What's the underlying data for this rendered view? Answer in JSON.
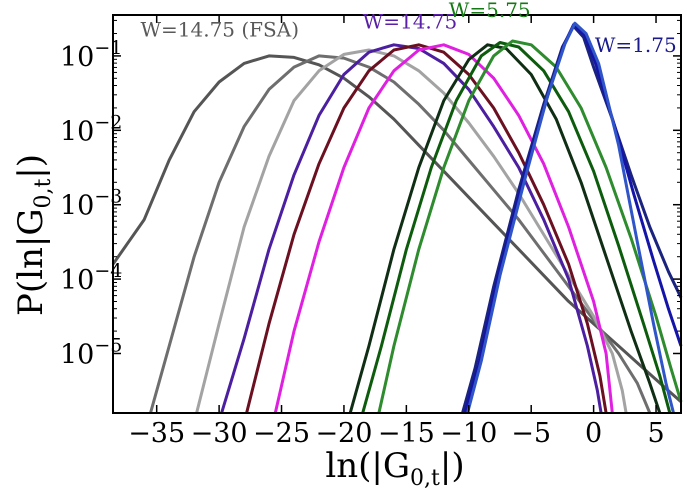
{
  "chart_data": {
    "type": "line",
    "xlabel": "ln(|G",
    "xlabel_sub": "0,t",
    "xlabel_end": "|)",
    "ylabel": "P(ln|G",
    "ylabel_sub": "0,t",
    "ylabel_end": "|)",
    "y_scale": "log",
    "xlim": [
      -38.5,
      7
    ],
    "ylim_exp": [
      -5.8,
      -0.45
    ],
    "x_ticks": [
      -35,
      -30,
      -25,
      -20,
      -15,
      -10,
      -5,
      0,
      5
    ],
    "x_tick_labels": [
      "−35",
      "−30",
      "−25",
      "−20",
      "−15",
      "−10",
      "−5",
      "0",
      "5"
    ],
    "y_tick_exps": [
      -1,
      -2,
      -3,
      -4,
      -5
    ],
    "y_tick_base": "10",
    "y_tick_exp_labels": [
      "−1",
      "−2",
      "−3",
      "−4",
      "−5"
    ],
    "annotations": [
      {
        "text": "W=14.75 (FSA)",
        "color": "#595959",
        "x": -36.3,
        "yexp": -0.74
      },
      {
        "text": "W=14.75",
        "color": "#5a1fa6",
        "x": -18.5,
        "yexp": -0.63
      },
      {
        "text": "W=5.75",
        "color": "#137a13",
        "x": -11.6,
        "yexp": -0.48
      },
      {
        "text": "W=1.75",
        "color": "#1a1a8c",
        "x": 0.1,
        "yexp": -0.95
      }
    ],
    "series": [
      {
        "color": "#555555",
        "points": [
          [
            -38.5,
            -3.8
          ],
          [
            -36,
            -3.2
          ],
          [
            -34,
            -2.4
          ],
          [
            -32,
            -1.75
          ],
          [
            -30,
            -1.35
          ],
          [
            -28,
            -1.1
          ],
          [
            -26,
            -1.0
          ],
          [
            -24,
            -1.02
          ],
          [
            -22,
            -1.12
          ],
          [
            -20,
            -1.3
          ],
          [
            -18,
            -1.55
          ],
          [
            -16,
            -1.85
          ],
          [
            -14,
            -2.2
          ],
          [
            -12,
            -2.55
          ],
          [
            -10,
            -2.9
          ],
          [
            -8,
            -3.25
          ],
          [
            -6,
            -3.6
          ],
          [
            -4,
            -3.95
          ],
          [
            -2,
            -4.3
          ],
          [
            0,
            -4.6
          ],
          [
            2,
            -4.9
          ],
          [
            4,
            -5.2
          ],
          [
            6,
            -5.5
          ],
          [
            7,
            -5.65
          ]
        ]
      },
      {
        "color": "#6e6e6e",
        "points": [
          [
            -35.5,
            -5.8
          ],
          [
            -34,
            -4.9
          ],
          [
            -32,
            -3.7
          ],
          [
            -30,
            -2.7
          ],
          [
            -28,
            -1.95
          ],
          [
            -26,
            -1.45
          ],
          [
            -24,
            -1.15
          ],
          [
            -22,
            -1.0
          ],
          [
            -20,
            -1.03
          ],
          [
            -18,
            -1.15
          ],
          [
            -16,
            -1.35
          ],
          [
            -14,
            -1.65
          ],
          [
            -12,
            -2.0
          ],
          [
            -10,
            -2.4
          ],
          [
            -8,
            -2.8
          ],
          [
            -6,
            -3.2
          ],
          [
            -4,
            -3.65
          ],
          [
            -2,
            -4.1
          ],
          [
            0,
            -4.55
          ],
          [
            2,
            -5.0
          ],
          [
            3.5,
            -5.4
          ],
          [
            4.5,
            -5.8
          ]
        ]
      },
      {
        "color": "#a3a3a3",
        "points": [
          [
            -31.8,
            -5.8
          ],
          [
            -30,
            -4.6
          ],
          [
            -28,
            -3.3
          ],
          [
            -26,
            -2.35
          ],
          [
            -24,
            -1.6
          ],
          [
            -22,
            -1.2
          ],
          [
            -20,
            -0.98
          ],
          [
            -18,
            -0.92
          ],
          [
            -16,
            -1.0
          ],
          [
            -14,
            -1.2
          ],
          [
            -12,
            -1.5
          ],
          [
            -10,
            -1.9
          ],
          [
            -8,
            -2.35
          ],
          [
            -6,
            -2.85
          ],
          [
            -4,
            -3.4
          ],
          [
            -2,
            -3.95
          ],
          [
            0,
            -4.5
          ],
          [
            1.5,
            -5.0
          ],
          [
            2.3,
            -5.5
          ],
          [
            2.6,
            -5.8
          ]
        ]
      },
      {
        "color": "#4b1fa0",
        "points": [
          [
            -29.8,
            -5.8
          ],
          [
            -28,
            -4.8
          ],
          [
            -26,
            -3.6
          ],
          [
            -24,
            -2.6
          ],
          [
            -22,
            -1.8
          ],
          [
            -20,
            -1.25
          ],
          [
            -18,
            -0.95
          ],
          [
            -16,
            -0.85
          ],
          [
            -14,
            -0.9
          ],
          [
            -12,
            -1.1
          ],
          [
            -10,
            -1.45
          ],
          [
            -8,
            -1.95
          ],
          [
            -6,
            -2.5
          ],
          [
            -4,
            -3.2
          ],
          [
            -2,
            -4.0
          ],
          [
            -0.5,
            -4.9
          ],
          [
            0.3,
            -5.5
          ],
          [
            0.6,
            -5.8
          ]
        ]
      },
      {
        "color": "#6b1020",
        "points": [
          [
            -27.8,
            -5.8
          ],
          [
            -26,
            -4.6
          ],
          [
            -24,
            -3.4
          ],
          [
            -22,
            -2.45
          ],
          [
            -20,
            -1.7
          ],
          [
            -18,
            -1.2
          ],
          [
            -16,
            -0.92
          ],
          [
            -14,
            -0.85
          ],
          [
            -12,
            -0.95
          ],
          [
            -10,
            -1.25
          ],
          [
            -8,
            -1.7
          ],
          [
            -6,
            -2.3
          ],
          [
            -4,
            -3.0
          ],
          [
            -2,
            -3.8
          ],
          [
            -0.5,
            -4.6
          ],
          [
            0.5,
            -5.3
          ],
          [
            1,
            -5.8
          ]
        ]
      },
      {
        "color": "#e020e0",
        "points": [
          [
            -25.5,
            -5.8
          ],
          [
            -24,
            -4.7
          ],
          [
            -22,
            -3.5
          ],
          [
            -20,
            -2.5
          ],
          [
            -18,
            -1.7
          ],
          [
            -16,
            -1.2
          ],
          [
            -14,
            -0.92
          ],
          [
            -12,
            -0.85
          ],
          [
            -10,
            -0.98
          ],
          [
            -8,
            -1.3
          ],
          [
            -6,
            -1.8
          ],
          [
            -4,
            -2.45
          ],
          [
            -2,
            -3.3
          ],
          [
            0,
            -4.3
          ],
          [
            1,
            -5.0
          ],
          [
            1.5,
            -5.8
          ]
        ]
      },
      {
        "color": "#0f2e14",
        "points": [
          [
            -19.5,
            -5.8
          ],
          [
            -18,
            -4.9
          ],
          [
            -16,
            -3.6
          ],
          [
            -14,
            -2.5
          ],
          [
            -12,
            -1.6
          ],
          [
            -10,
            -1.05
          ],
          [
            -8.5,
            -0.85
          ],
          [
            -7,
            -0.9
          ],
          [
            -5,
            -1.25
          ],
          [
            -3,
            -1.85
          ],
          [
            -1,
            -2.7
          ],
          [
            1,
            -3.7
          ],
          [
            3,
            -4.7
          ],
          [
            4.5,
            -5.4
          ],
          [
            5.3,
            -5.8
          ]
        ]
      },
      {
        "color": "#0d5c0d",
        "points": [
          [
            -18.5,
            -5.8
          ],
          [
            -17,
            -4.9
          ],
          [
            -15,
            -3.6
          ],
          [
            -13,
            -2.5
          ],
          [
            -11,
            -1.6
          ],
          [
            -9,
            -1.0
          ],
          [
            -7.5,
            -0.82
          ],
          [
            -6,
            -0.88
          ],
          [
            -4,
            -1.2
          ],
          [
            -2,
            -1.75
          ],
          [
            0,
            -2.55
          ],
          [
            2,
            -3.55
          ],
          [
            4,
            -4.6
          ],
          [
            5.3,
            -5.3
          ],
          [
            6.1,
            -5.8
          ]
        ]
      },
      {
        "color": "#2e8b2e",
        "points": [
          [
            -17.2,
            -5.8
          ],
          [
            -16,
            -4.9
          ],
          [
            -14,
            -3.6
          ],
          [
            -12,
            -2.5
          ],
          [
            -10,
            -1.6
          ],
          [
            -8,
            -1.0
          ],
          [
            -6.5,
            -0.8
          ],
          [
            -5,
            -0.85
          ],
          [
            -3,
            -1.15
          ],
          [
            -1,
            -1.7
          ],
          [
            1,
            -2.5
          ],
          [
            3,
            -3.45
          ],
          [
            5,
            -4.5
          ],
          [
            6.2,
            -5.2
          ],
          [
            7,
            -5.65
          ]
        ]
      },
      {
        "color": "#1a237e",
        "points": [
          [
            -10.5,
            -5.8
          ],
          [
            -9.5,
            -5.2
          ],
          [
            -8,
            -4.1
          ],
          [
            -6,
            -2.8
          ],
          [
            -4,
            -1.65
          ],
          [
            -2.5,
            -0.88
          ],
          [
            -1.6,
            -0.6
          ],
          [
            -0.8,
            -0.75
          ],
          [
            0,
            -1.15
          ],
          [
            1.5,
            -1.85
          ],
          [
            3,
            -2.6
          ],
          [
            4.5,
            -3.3
          ],
          [
            6,
            -3.9
          ],
          [
            7,
            -4.25
          ]
        ]
      },
      {
        "color": "#1414a8",
        "points": [
          [
            -10.3,
            -5.8
          ],
          [
            -9.2,
            -5.15
          ],
          [
            -7.7,
            -4.0
          ],
          [
            -5.7,
            -2.7
          ],
          [
            -3.8,
            -1.6
          ],
          [
            -2.4,
            -0.86
          ],
          [
            -1.6,
            -0.58
          ],
          [
            -0.7,
            -0.72
          ],
          [
            0.2,
            -1.12
          ],
          [
            1.7,
            -1.95
          ],
          [
            3.2,
            -2.85
          ],
          [
            4.8,
            -3.75
          ],
          [
            6,
            -4.4
          ],
          [
            7,
            -4.9
          ]
        ]
      },
      {
        "color": "#2f55c8",
        "points": [
          [
            -10.1,
            -5.8
          ],
          [
            -9,
            -5.1
          ],
          [
            -7.5,
            -3.95
          ],
          [
            -5.5,
            -2.65
          ],
          [
            -3.7,
            -1.55
          ],
          [
            -2.3,
            -0.84
          ],
          [
            -1.5,
            -0.56
          ],
          [
            -0.6,
            -0.7
          ],
          [
            0.4,
            -1.1
          ],
          [
            2,
            -2.2
          ],
          [
            3.5,
            -3.5
          ],
          [
            4.8,
            -4.6
          ],
          [
            5.8,
            -5.4
          ],
          [
            6.4,
            -5.8
          ]
        ]
      }
    ]
  }
}
